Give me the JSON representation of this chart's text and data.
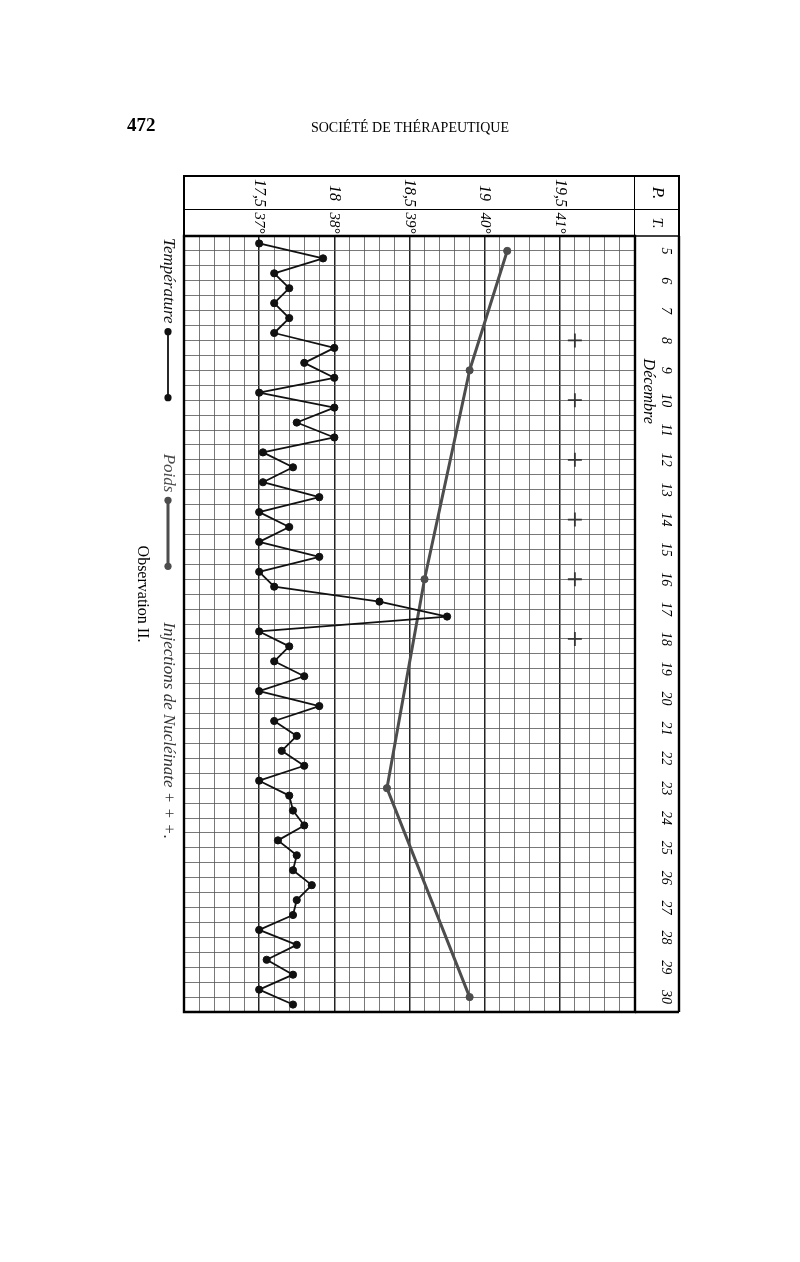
{
  "chart_data": {
    "type": "line",
    "title": "Observation II.",
    "annotations": [
      "472",
      "SOCIÉTÉ DE THÉRAPEUTIQUE",
      "T."
    ],
    "ylabel": "Décembre",
    "x2label": "P.",
    "ylim": [
      30.5,
      4.5
    ],
    "yticks": [
      5,
      {
        "value": 5.5,
        "label": null
      },
      6,
      {
        "value": 6.5,
        "label": null
      },
      7,
      {
        "value": 7.5,
        "label": null
      },
      8,
      {
        "value": 8.5,
        "label": null
      },
      9,
      {
        "value": 9.5,
        "label": null
      },
      10,
      {
        "value": 10.5,
        "label": null
      },
      11,
      {
        "value": 11.5,
        "label": null
      },
      12,
      {
        "value": 12.5,
        "label": null
      },
      13,
      {
        "value": 13.5,
        "label": null
      },
      14,
      {
        "value": 14.5,
        "label": null
      },
      15,
      {
        "value": 15.5,
        "label": null
      },
      16,
      {
        "value": 16.5,
        "label": null
      },
      17,
      {
        "value": 17.5,
        "label": null
      },
      18,
      {
        "value": 18.5,
        "label": null
      },
      19,
      {
        "value": 19.5,
        "label": null
      },
      20,
      {
        "value": 20.5,
        "label": null
      },
      21,
      {
        "value": 21.5,
        "label": null
      },
      22,
      {
        "value": 22.5,
        "label": null
      },
      23,
      {
        "value": 23.5,
        "label": null
      },
      24,
      {
        "value": 24.5,
        "label": null
      },
      25,
      {
        "value": 25.5,
        "label": null
      },
      26,
      {
        "value": 26.5,
        "label": null
      },
      27,
      {
        "value": 27.5,
        "label": null
      },
      28,
      {
        "value": 28.5,
        "label": null
      },
      29,
      {
        "value": 29.5,
        "label": null
      },
      30
    ],
    "xlim": [
      36,
      42
    ],
    "xticks": [
      {
        "value": 36.2,
        "label": null
      },
      {
        "value": 36.4,
        "label": null
      },
      {
        "value": 36.6,
        "label": null
      },
      {
        "value": 36.8,
        "label": null
      },
      {
        "value": 37,
        "label": "37°"
      },
      {
        "value": 37.2,
        "label": null
      },
      {
        "value": 37.4,
        "label": null
      },
      {
        "value": 37.6,
        "label": null
      },
      {
        "value": 37.8,
        "label": null
      },
      {
        "value": 38,
        "label": "38°"
      },
      {
        "value": 38.2,
        "label": null
      },
      {
        "value": 38.4,
        "label": null
      },
      {
        "value": 38.6,
        "label": null
      },
      {
        "value": 38.8,
        "label": null
      },
      {
        "value": 39,
        "label": "39°"
      },
      {
        "value": 39.2,
        "label": null
      },
      {
        "value": 39.4,
        "label": null
      },
      {
        "value": 39.6,
        "label": null
      },
      {
        "value": 39.8,
        "label": null
      },
      {
        "value": 40,
        "label": "40°"
      },
      {
        "value": 40.2,
        "label": null
      },
      {
        "value": 40.4,
        "label": null
      },
      {
        "value": 40.6,
        "label": null
      },
      {
        "value": 40.8,
        "label": null
      },
      {
        "value": 41,
        "label": "41°"
      },
      {
        "value": 41.2,
        "label": null
      },
      {
        "value": 41.4,
        "label": null
      },
      {
        "value": 41.6,
        "label": null
      },
      {
        "value": 41.8,
        "label": null
      }
    ],
    "x2lim": [
      17,
      20
    ],
    "x2ticks": [
      {
        "value": 17.5,
        "label": "17,5"
      },
      18,
      {
        "value": 18.5,
        "label": "18,5"
      },
      19,
      {
        "value": 19.5,
        "label": "19,5"
      }
    ],
    "grid": true,
    "legend": "left",
    "marker": "circle",
    "series": [
      {
        "name": "Température",
        "color": "#111111",
        "x": [
          37.0,
          37.85,
          37.2,
          37.4,
          37.2,
          37.4,
          37.2,
          38.0,
          37.6,
          38.0,
          37.0,
          38.0,
          37.5,
          38.0,
          37.05,
          37.45,
          37.05,
          37.8,
          37.0,
          37.4,
          37.0,
          37.8,
          37.0,
          37.2,
          38.6,
          39.5,
          37.0,
          37.4,
          37.2,
          37.6,
          37.0,
          37.8,
          37.2,
          37.5,
          37.3,
          37.6,
          37.0,
          37.4,
          37.45,
          37.6,
          37.25,
          37.5,
          37.45,
          37.7,
          37.5,
          37.45,
          37.0,
          37.5,
          37.1,
          37.45,
          37.0,
          37.45
        ],
        "values": [
          4.75,
          5.25,
          5.75,
          6.25,
          6.75,
          7.25,
          7.75,
          8.25,
          8.75,
          9.25,
          9.75,
          10.25,
          10.75,
          11.25,
          11.75,
          12.25,
          12.75,
          13.25,
          13.75,
          14.25,
          14.75,
          15.25,
          15.75,
          16.25,
          16.75,
          17.25,
          17.75,
          18.25,
          18.75,
          19.25,
          19.75,
          20.25,
          20.75,
          21.25,
          21.75,
          22.25,
          22.75,
          23.25,
          23.75,
          24.25,
          24.75,
          25.25,
          25.75,
          26.25,
          26.75,
          27.25,
          27.75,
          28.25,
          28.75,
          29.25,
          29.75,
          30.25
        ]
      },
      {
        "name": "Poids",
        "color": "#4d4d4d",
        "axis": "x2",
        "x": [
          19.15,
          18.9,
          18.6,
          18.35,
          18.9
        ],
        "values": [
          5,
          9,
          16,
          23,
          30
        ]
      },
      {
        "name": "Injections de Nucléinate + + +.",
        "type": "scatter",
        "marker": "cross",
        "color": "#333333",
        "x": [
          41.2,
          41.2,
          41.2,
          41.2,
          41.2,
          41.2
        ],
        "values": [
          8,
          10,
          12,
          14,
          16,
          18
        ]
      }
    ]
  }
}
